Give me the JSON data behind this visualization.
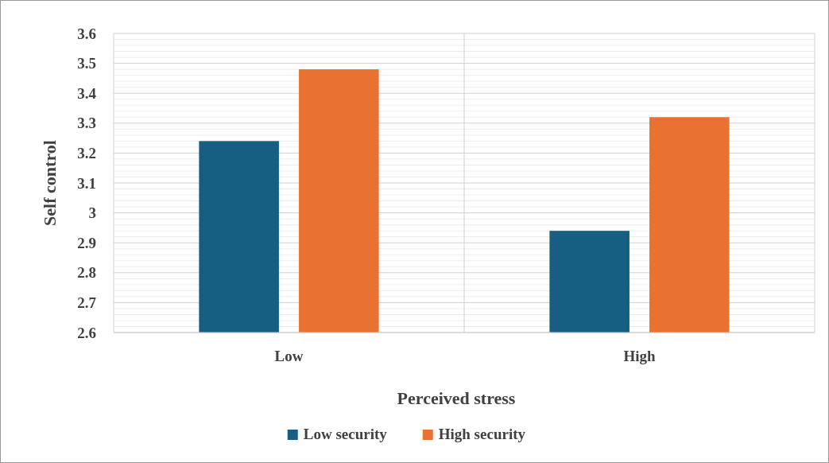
{
  "chart_data": {
    "type": "bar",
    "xlabel": "Perceived stress",
    "ylabel": "Self control",
    "categories": [
      "Low",
      "High"
    ],
    "series": [
      {
        "name": "Low security",
        "color": "#175f82",
        "values": [
          3.24,
          2.94
        ]
      },
      {
        "name": "High security",
        "color": "#e97132",
        "values": [
          3.48,
          3.32
        ]
      }
    ],
    "ylim": [
      2.6,
      3.6
    ],
    "yticks": [
      2.6,
      {
        "value": 2.62,
        "label": null
      },
      {
        "value": 2.64,
        "label": null
      },
      {
        "value": 2.66,
        "label": null
      },
      {
        "value": 2.68,
        "label": null
      },
      2.7,
      {
        "value": 2.72,
        "label": null
      },
      {
        "value": 2.74,
        "label": null
      },
      {
        "value": 2.76,
        "label": null
      },
      {
        "value": 2.78,
        "label": null
      },
      2.8,
      {
        "value": 2.82,
        "label": null
      },
      {
        "value": 2.84,
        "label": null
      },
      {
        "value": 2.86,
        "label": null
      },
      {
        "value": 2.88,
        "label": null
      },
      2.9,
      {
        "value": 2.92,
        "label": null
      },
      {
        "value": 2.94,
        "label": null
      },
      {
        "value": 2.96,
        "label": null
      },
      {
        "value": 2.98,
        "label": null
      },
      3,
      {
        "value": 3.02,
        "label": null
      },
      {
        "value": 3.04,
        "label": null
      },
      {
        "value": 3.06,
        "label": null
      },
      {
        "value": 3.08,
        "label": null
      },
      3.1,
      {
        "value": 3.12,
        "label": null
      },
      {
        "value": 3.14,
        "label": null
      },
      {
        "value": 3.16,
        "label": null
      },
      {
        "value": 3.18,
        "label": null
      },
      3.2,
      {
        "value": 3.22,
        "label": null
      },
      {
        "value": 3.24,
        "label": null
      },
      {
        "value": 3.26,
        "label": null
      },
      {
        "value": 3.28,
        "label": null
      },
      3.3,
      {
        "value": 3.32,
        "label": null
      },
      {
        "value": 3.34,
        "label": null
      },
      {
        "value": 3.36,
        "label": null
      },
      {
        "value": 3.38,
        "label": null
      },
      3.4,
      {
        "value": 3.42,
        "label": null
      },
      {
        "value": 3.44,
        "label": null
      },
      {
        "value": 3.46,
        "label": null
      },
      {
        "value": 3.48,
        "label": null
      },
      3.5,
      {
        "value": 3.52,
        "label": null
      },
      {
        "value": 3.54,
        "label": null
      },
      {
        "value": 3.56,
        "label": null
      },
      {
        "value": 3.58,
        "label": null
      },
      3.6
    ],
    "grid": true,
    "legend": "bottom"
  }
}
